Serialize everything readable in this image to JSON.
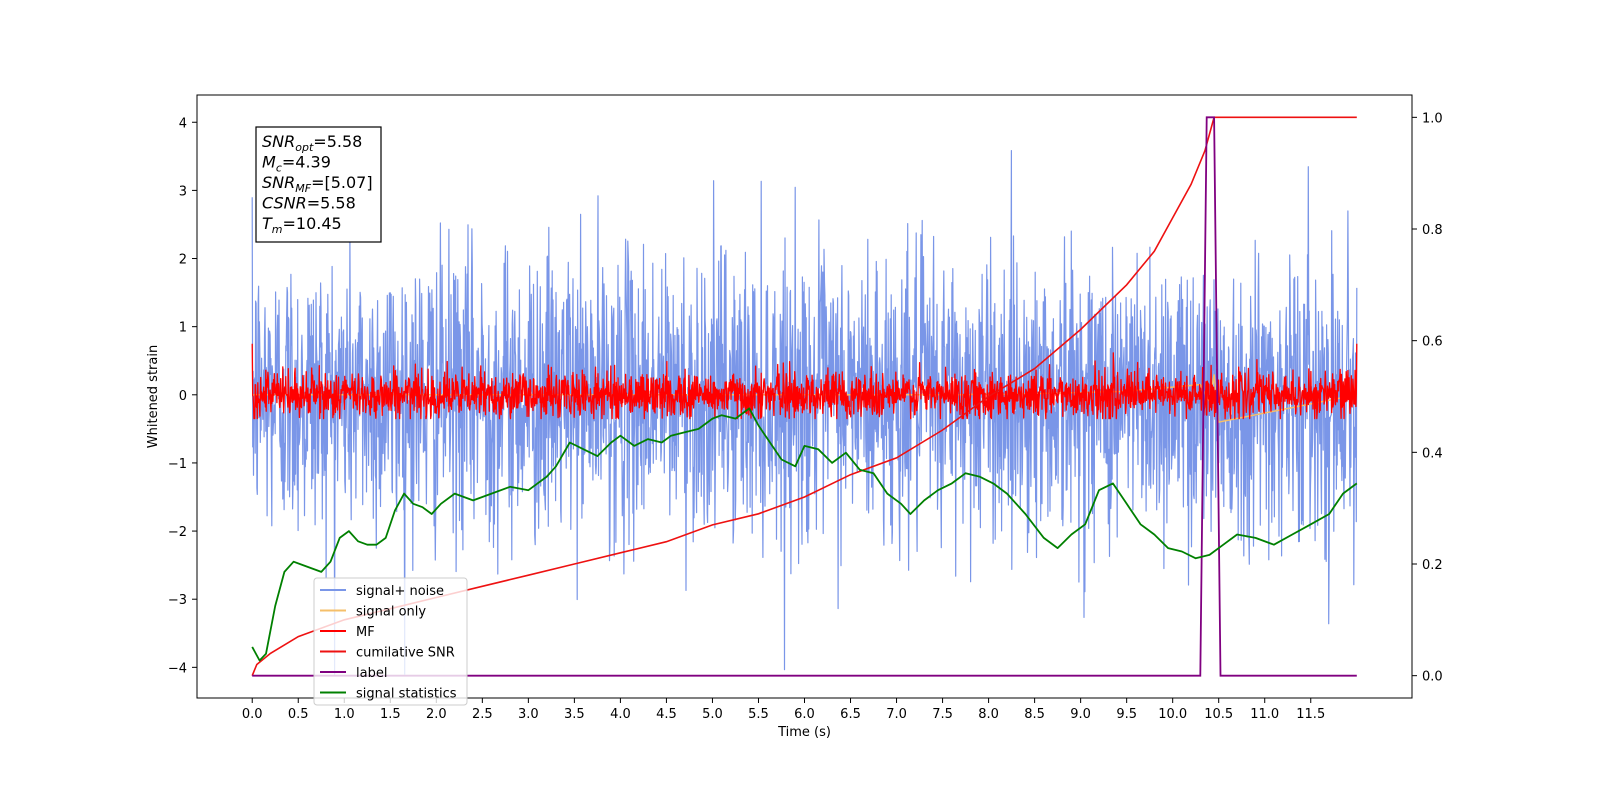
{
  "chart_data": {
    "type": "line",
    "xlabel": "Time (s)",
    "ylabel": "Whitened strain",
    "xlim": [
      -0.6,
      12.6
    ],
    "ylim": [
      -4.45,
      4.4
    ],
    "ylim_right": [
      -0.04,
      1.04
    ],
    "x_ticks": [
      "0.0",
      "0.5",
      "1.0",
      "1.5",
      "2.0",
      "2.5",
      "3.0",
      "3.5",
      "4.0",
      "4.5",
      "5.0",
      "5.5",
      "6.0",
      "6.5",
      "7.0",
      "7.5",
      "8.0",
      "8.5",
      "9.0",
      "9.5",
      "10.0",
      "10.5",
      "11.0",
      "11.5"
    ],
    "y_ticks": [
      "4",
      "3",
      "2",
      "1",
      "0",
      "−1",
      "−2",
      "−3",
      "−4"
    ],
    "y_ticks_right": [
      "1.0",
      "0.8",
      "0.6",
      "0.4",
      "0.2",
      "0.0"
    ],
    "annotation": {
      "lines": [
        {
          "base": "SNR",
          "sub": "opt",
          "value": "=5.58"
        },
        {
          "base": "M",
          "sub": "c",
          "value": "=4.39"
        },
        {
          "base": "SNR",
          "sub": "MF",
          "value": "=[5.07]"
        },
        {
          "base": "CSNR",
          "sub": "",
          "value": "=5.58"
        },
        {
          "base": "T",
          "sub": "m",
          "value": "=10.45"
        }
      ]
    },
    "legend": {
      "placement": "lower-left",
      "entries": [
        {
          "name": "signal+ noise",
          "color": "#7a96e8"
        },
        {
          "name": "signal only",
          "color": "#f5bf6a"
        },
        {
          "name": "MF",
          "color": "#ff0000"
        },
        {
          "name": "cumilative SNR",
          "color": "#ee1111"
        },
        {
          "name": "label",
          "color": "#800080"
        },
        {
          "name": "signal statistics",
          "color": "#008000"
        }
      ]
    },
    "series": [
      {
        "name": "signal+ noise",
        "axis": "left",
        "color": "#7a96e8",
        "description_values": {
          "t_start": 0.0,
          "t_end": 12.0,
          "envelope_min": -4.1,
          "envelope_max": 4.0,
          "typical_amplitude": 1.9
        }
      },
      {
        "name": "signal only",
        "axis": "left",
        "color": "#f5bf6a",
        "x": [
          0.0,
          7.8,
          7.9,
          8.0,
          9.5,
          10.3,
          10.4,
          10.45,
          10.5,
          12.0
        ],
        "y": [
          0.0,
          0.0,
          0.03,
          0.0,
          0.05,
          0.15,
          -0.1,
          0.3,
          -0.4,
          0.0
        ]
      },
      {
        "name": "MF",
        "axis": "left",
        "color": "#ff0000",
        "description_values": {
          "t_start": 0.0,
          "t_end": 12.0,
          "envelope_min": -0.35,
          "envelope_max": 0.8,
          "start_value": 1.0,
          "end_value": 0.8
        }
      },
      {
        "name": "cumilative SNR",
        "axis": "right",
        "color": "#ee1111",
        "x": [
          0.0,
          0.05,
          0.2,
          0.5,
          1.0,
          1.5,
          2.0,
          2.5,
          3.0,
          3.5,
          4.0,
          4.5,
          5.0,
          5.5,
          6.0,
          6.5,
          7.0,
          7.5,
          8.0,
          8.5,
          9.0,
          9.5,
          9.8,
          10.0,
          10.2,
          10.35,
          10.45,
          10.5,
          11.0,
          11.5,
          12.0
        ],
        "y": [
          0.0,
          0.02,
          0.04,
          0.07,
          0.1,
          0.12,
          0.14,
          0.16,
          0.18,
          0.2,
          0.22,
          0.24,
          0.27,
          0.29,
          0.32,
          0.36,
          0.39,
          0.44,
          0.5,
          0.55,
          0.62,
          0.7,
          0.76,
          0.82,
          0.88,
          0.94,
          1.0,
          1.0,
          1.0,
          1.0,
          1.0
        ]
      },
      {
        "name": "label",
        "axis": "right",
        "color": "#800080",
        "x": [
          0.0,
          10.3,
          10.37,
          10.45,
          10.52,
          12.0
        ],
        "y": [
          0.0,
          0.0,
          1.0,
          1.0,
          0.0,
          0.0
        ]
      },
      {
        "name": "signal statistics",
        "axis": "left",
        "color": "#008000",
        "x": [
          0.0,
          0.08,
          0.15,
          0.25,
          0.35,
          0.45,
          0.55,
          0.65,
          0.75,
          0.85,
          0.95,
          1.05,
          1.15,
          1.25,
          1.35,
          1.45,
          1.55,
          1.65,
          1.75,
          1.85,
          1.95,
          2.05,
          2.2,
          2.4,
          2.6,
          2.8,
          3.0,
          3.2,
          3.3,
          3.45,
          3.6,
          3.75,
          3.9,
          4.0,
          4.15,
          4.3,
          4.45,
          4.55,
          4.7,
          4.85,
          5.0,
          5.1,
          5.25,
          5.4,
          5.5,
          5.6,
          5.75,
          5.9,
          6.0,
          6.15,
          6.3,
          6.45,
          6.6,
          6.75,
          6.9,
          7.05,
          7.15,
          7.3,
          7.45,
          7.6,
          7.75,
          7.9,
          8.05,
          8.2,
          8.4,
          8.6,
          8.75,
          8.9,
          9.05,
          9.2,
          9.35,
          9.5,
          9.65,
          9.8,
          9.95,
          10.1,
          10.25,
          10.4,
          10.55,
          10.7,
          10.9,
          11.1,
          11.3,
          11.5,
          11.7,
          11.85,
          12.0
        ],
        "y": [
          -3.7,
          -3.9,
          -3.8,
          -3.1,
          -2.6,
          -2.45,
          -2.5,
          -2.55,
          -2.6,
          -2.45,
          -2.1,
          -2.0,
          -2.15,
          -2.2,
          -2.2,
          -2.1,
          -1.7,
          -1.45,
          -1.6,
          -1.65,
          -1.75,
          -1.6,
          -1.45,
          -1.55,
          -1.45,
          -1.35,
          -1.4,
          -1.2,
          -1.05,
          -0.7,
          -0.8,
          -0.9,
          -0.7,
          -0.6,
          -0.75,
          -0.65,
          -0.7,
          -0.6,
          -0.55,
          -0.5,
          -0.35,
          -0.3,
          -0.35,
          -0.2,
          -0.45,
          -0.65,
          -0.95,
          -1.05,
          -0.75,
          -0.8,
          -1.0,
          -0.85,
          -1.1,
          -1.15,
          -1.45,
          -1.6,
          -1.75,
          -1.55,
          -1.4,
          -1.3,
          -1.15,
          -1.2,
          -1.3,
          -1.45,
          -1.75,
          -2.1,
          -2.25,
          -2.05,
          -1.9,
          -1.4,
          -1.3,
          -1.6,
          -1.9,
          -2.05,
          -2.25,
          -2.3,
          -2.4,
          -2.35,
          -2.2,
          -2.05,
          -2.1,
          -2.2,
          -2.05,
          -1.9,
          -1.75,
          -1.45,
          -1.3
        ]
      }
    ]
  }
}
